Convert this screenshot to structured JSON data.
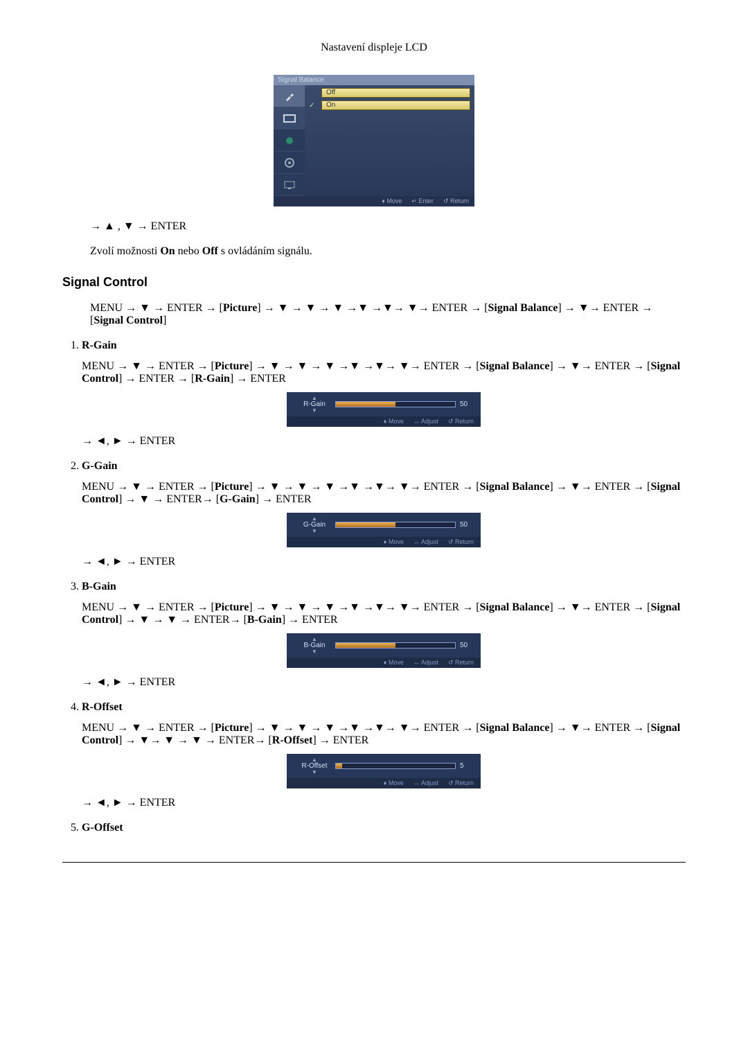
{
  "header": "Nastavení displeje LCD",
  "osd_main": {
    "title": "Signal Balance",
    "options": [
      {
        "mark": "",
        "label": "Off"
      },
      {
        "mark": "✓",
        "label": "On"
      }
    ],
    "footer": {
      "move": "Move",
      "enter": "Enter",
      "return": "Return"
    }
  },
  "line_nav_updown": "→ ▲ , ▼ → ENTER",
  "line_onoff": "Zvolí možnosti On nebo Off s ovládáním signálu.",
  "section_title": "Signal Control",
  "intro_path_pre": "MENU → ▼ → ENTER → [",
  "picture": "Picture",
  "intro_arrows": "] → ▼ → ▼ → ▼ →▼ →▼→ ▼→ ENTER → [",
  "signal_balance": "Signal Balance",
  "intro_tail": "] → ▼→ ENTER → [",
  "signal_control": "Signal Control",
  "close_br": "]",
  "items": [
    {
      "title": "R-Gain",
      "path_a": "MENU → ▼ → ENTER → [",
      "path_b": "] → ▼ → ▼ → ▼ →▼ →▼→ ▼→ ENTER → [",
      "path_c": "] → ▼→ ENTER → [",
      "path_d": "] → ENTER → [",
      "target": "R-Gain",
      "path_e": "] → ENTER",
      "slider": {
        "label": "R-Gain",
        "value": "50",
        "fill_pct": 50
      },
      "nav": "→ ◄, ► → ENTER"
    },
    {
      "title": "G-Gain",
      "path_a": "MENU → ▼ → ENTER → [",
      "path_b": "] → ▼ → ▼ → ▼ →▼ →▼→ ▼→ ENTER → [",
      "path_c": "] → ▼→ ENTER → [",
      "path_d": "] → ▼ → ENTER→ [",
      "target": "G-Gain",
      "path_e": "] → ENTER",
      "slider": {
        "label": "G-Gain",
        "value": "50",
        "fill_pct": 50
      },
      "nav": "→ ◄, ► → ENTER"
    },
    {
      "title": "B-Gain",
      "path_a": "MENU → ▼ → ENTER → [",
      "path_b": "] → ▼ → ▼ → ▼ →▼ →▼→ ▼→ ENTER → [",
      "path_c": "] → ▼→ ENTER → [",
      "path_d": "] → ▼ → ▼ → ENTER→ [",
      "target": "B-Gain",
      "path_e": "] → ENTER",
      "slider": {
        "label": "B-Gain",
        "value": "50",
        "fill_pct": 50
      },
      "nav": "→ ◄, ► → ENTER"
    },
    {
      "title": "R-Offset",
      "path_a": "MENU → ▼ → ENTER → [",
      "path_b": "] → ▼ → ▼ → ▼ →▼ →▼→ ▼→ ENTER → [",
      "path_c": "] → ▼→ ENTER → [",
      "path_d": "] → ▼→ ▼ → ▼ → ENTER→ [",
      "target": "R-Offset",
      "path_e": "] → ENTER",
      "slider": {
        "label": "R-Offset",
        "value": "5",
        "fill_pct": 5
      },
      "nav": "→ ◄, ► → ENTER"
    },
    {
      "title": "G-Offset",
      "slider": null,
      "nav": null
    }
  ],
  "slider_footer": {
    "move": "Move",
    "adjust": "Adjust",
    "return": "Return"
  },
  "colors": {
    "osd_bg": "#2a3a5a",
    "osd_title_bg": "#7e8fb0",
    "osd_bar": "#d8c86a",
    "slider_fill": "#eab050"
  }
}
